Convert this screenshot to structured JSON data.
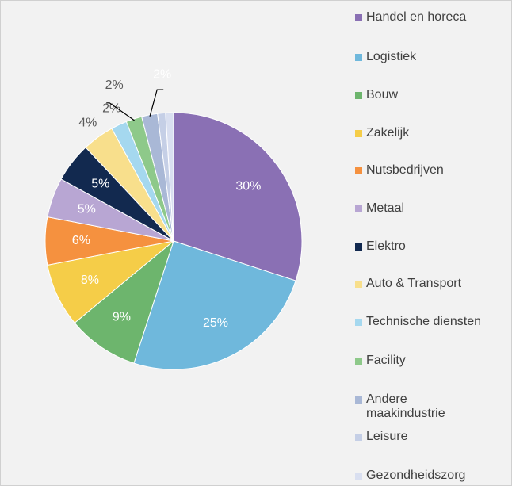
{
  "chart_data": {
    "type": "pie",
    "categories": [
      "Handel en horeca",
      "Logistiek",
      "Bouw",
      "Zakelijk",
      "Nutsbedrijven",
      "Metaal",
      "Elektro",
      "Auto & Transport",
      "Technische diensten",
      "Facility",
      "Andere maakindustrie",
      "Leisure",
      "Gezondheidszorg"
    ],
    "values": [
      30,
      25,
      9,
      8,
      6,
      5,
      5,
      4,
      2,
      2,
      2,
      1,
      1
    ],
    "value_labels": [
      "30%",
      "25%",
      "9%",
      "8%",
      "6%",
      "5%",
      "5%",
      "4%",
      "2%",
      "2%",
      "2%",
      null,
      null
    ],
    "colors": [
      "#8a70b4",
      "#6fb8dc",
      "#6db56d",
      "#f5cd48",
      "#f5913f",
      "#b8a6d3",
      "#12294f",
      "#f8df8c",
      "#a5d8ef",
      "#8ec98a",
      "#a9b8d6",
      "#c5cfe6",
      "#d9dff0"
    ]
  }
}
